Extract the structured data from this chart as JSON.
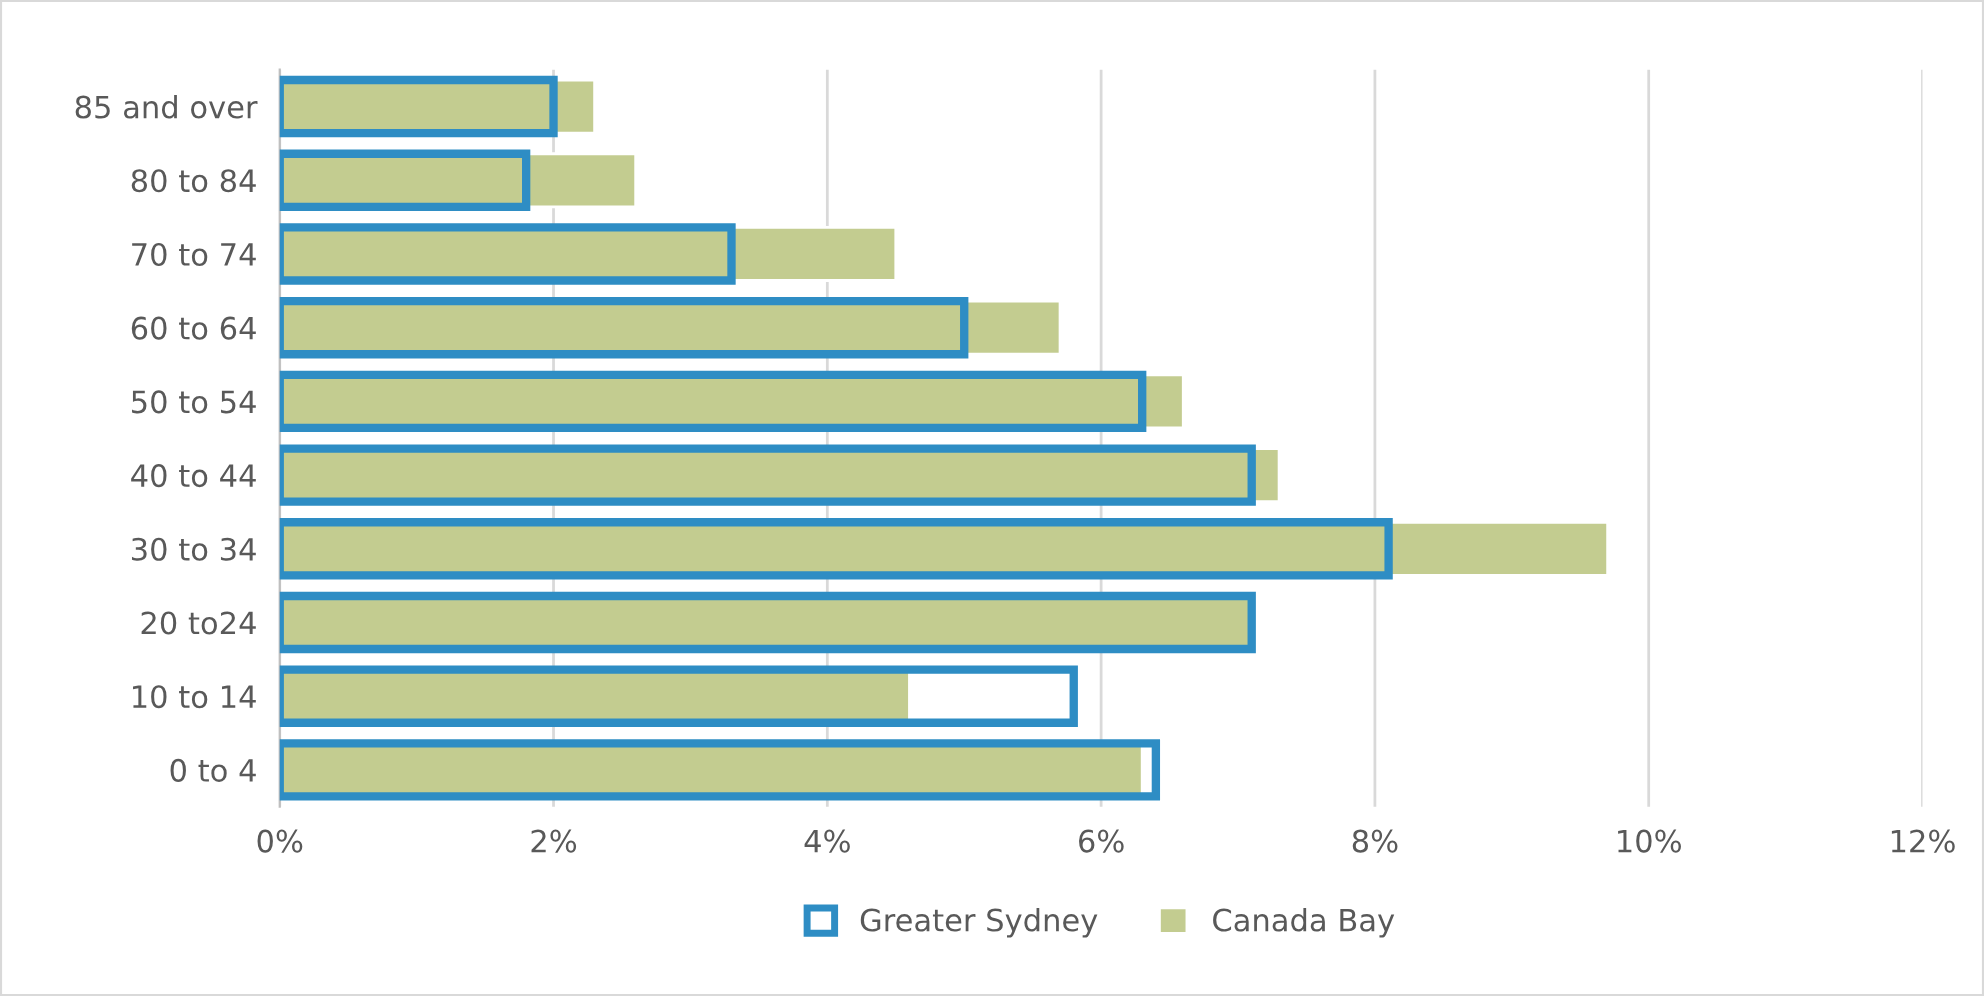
{
  "chart_data": {
    "type": "bar",
    "orientation": "horizontal",
    "categories": [
      "85 and over",
      "80 to 84",
      "70 to 74",
      "60 to 64",
      "50 to 54",
      "40 to 44",
      "30 to 34",
      "20 to24",
      "10 to 14",
      "0 to 4"
    ],
    "series": [
      {
        "name": "Greater Sydney",
        "color": "#2e8dc4",
        "values": [
          2.0,
          1.8,
          3.3,
          5.0,
          6.3,
          7.1,
          8.1,
          7.1,
          5.8,
          6.4
        ]
      },
      {
        "name": "Canada Bay",
        "color": "#c3cc90",
        "values": [
          2.3,
          2.6,
          4.5,
          5.7,
          6.6,
          7.3,
          9.7,
          null,
          4.6,
          6.3
        ]
      }
    ],
    "xlim": [
      0,
      12
    ],
    "xticks": [
      {
        "value": 0,
        "label": "0%"
      },
      {
        "value": 2,
        "label": "2%"
      },
      {
        "value": 4,
        "label": "4%"
      },
      {
        "value": 6,
        "label": "6%"
      },
      {
        "value": 8,
        "label": "8%"
      },
      {
        "value": 10,
        "label": "10%"
      },
      {
        "value": 12,
        "label": "12%"
      }
    ],
    "grid": "x",
    "legend": "bottom"
  }
}
